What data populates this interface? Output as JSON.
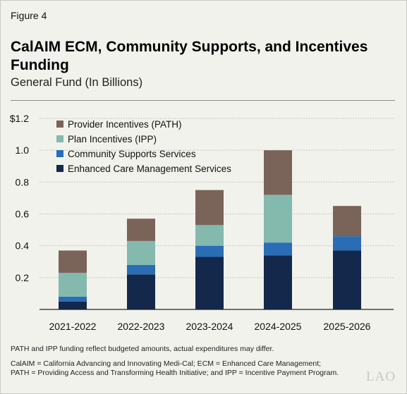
{
  "figure_label": "Figure 4",
  "title": "CalAIM ECM, Community Supports, and Incentives Funding",
  "subtitle": "General Fund (In Billions)",
  "footnote": "PATH and IPP funding reflect budgeted amounts, actual expenditures may differ.",
  "definitions_line1": "CalAIM = California Advancing and Innovating Medi-Cal; ECM = Enhanced Care Management;",
  "definitions_line2": "PATH = Providing Access and Transforming Health Initiative; and IPP = Incentive Payment Program.",
  "logo": "LAO",
  "chart_data": {
    "type": "bar",
    "stacked": true,
    "categories": [
      "2021-2022",
      "2022-2023",
      "2023-2024",
      "2024-2025",
      "2025-2026"
    ],
    "y_ticks": [
      "$1.2",
      "1.0",
      "0.8",
      "0.6",
      "0.4",
      "0.2"
    ],
    "y_tick_values": [
      1.2,
      1.0,
      0.8,
      0.6,
      0.4,
      0.2
    ],
    "ylim": [
      0,
      1.2
    ],
    "grid": true,
    "legend_position": "top-left",
    "series": [
      {
        "name": "Enhanced Care Management Services",
        "color": "#14284b",
        "values": [
          0.05,
          0.22,
          0.33,
          0.34,
          0.37
        ]
      },
      {
        "name": "Community Supports Services",
        "color": "#2a6db5",
        "values": [
          0.03,
          0.06,
          0.07,
          0.08,
          0.09
        ]
      },
      {
        "name": "Plan Incentives (IPP)",
        "color": "#84b9ae",
        "values": [
          0.15,
          0.15,
          0.13,
          0.3,
          0.0
        ]
      },
      {
        "name": "Provider Incentives (PATH)",
        "color": "#7a6359",
        "values": [
          0.14,
          0.14,
          0.22,
          0.28,
          0.19
        ]
      }
    ]
  }
}
